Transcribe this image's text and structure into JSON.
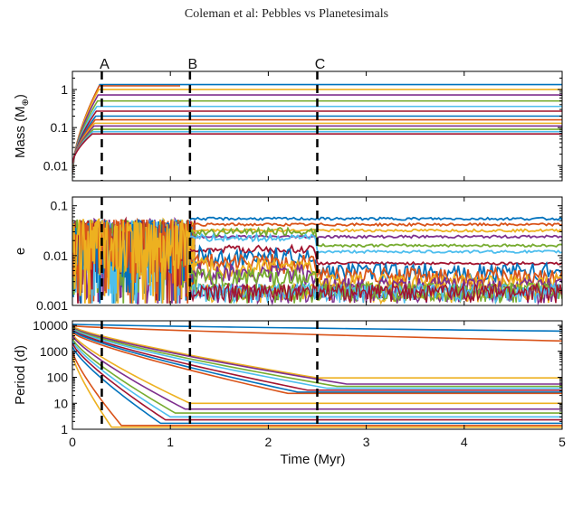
{
  "header": {
    "running_title": "Coleman et al: Pebbles vs Planetesimals"
  },
  "colors": [
    "#0072BD",
    "#D95319",
    "#EDB120",
    "#7E2F8E",
    "#77AC30",
    "#4DBEEE",
    "#A2142F"
  ],
  "chart_data": [
    {
      "panel": "mass",
      "type": "line",
      "ylabel": "Mass (M",
      "ylabel_sub": "⊕",
      "ylabel_close": ")",
      "yscale": "log",
      "ylim": [
        0.004,
        3
      ],
      "yticks": [
        "0.01",
        "0.1",
        "1"
      ],
      "xlim": [
        0,
        5
      ],
      "grid": false,
      "markers": [
        {
          "label": "A",
          "x": 0.3
        },
        {
          "label": "B",
          "x": 1.2
        },
        {
          "label": "C",
          "x": 2.5
        }
      ],
      "series_final_values": [
        1.35,
        1.25,
        1.0,
        0.72,
        0.5,
        0.36,
        0.27,
        0.2,
        0.16,
        0.13,
        0.11,
        0.09,
        0.078,
        0.068
      ],
      "growth_end_time": 0.28
    },
    {
      "panel": "eccentricity",
      "type": "line",
      "ylabel": "e",
      "yscale": "log",
      "ylim": [
        0.001,
        0.15
      ],
      "yticks": [
        "0.001",
        "0.01",
        "0.1"
      ],
      "xlim": [
        0,
        5
      ],
      "grid": false,
      "markers": [
        {
          "label": "A",
          "x": 0.3
        },
        {
          "label": "B",
          "x": 1.2
        },
        {
          "label": "C",
          "x": 2.5
        }
      ],
      "series_final_values": [
        0.055,
        0.042,
        0.032,
        0.024,
        0.016,
        0.012,
        0.007,
        0.005,
        0.004,
        0.003,
        0.0025,
        0.002
      ]
    },
    {
      "panel": "period",
      "type": "line",
      "ylabel": "Period (d)",
      "xlabel": "Time (Myr)",
      "yscale": "log",
      "ylim": [
        1,
        15000
      ],
      "yticks": [
        "1",
        "10",
        "100",
        "1000",
        "10000"
      ],
      "xticks": [
        "0",
        "1",
        "2",
        "3",
        "4",
        "5"
      ],
      "xlim": [
        0,
        5
      ],
      "grid": false,
      "markers": [
        {
          "label": "A",
          "x": 0.3
        },
        {
          "label": "B",
          "x": 1.2
        },
        {
          "label": "C",
          "x": 2.5
        }
      ],
      "series": [
        {
          "p0": 11000,
          "pf": 6000,
          "t_end": 5.0
        },
        {
          "p0": 9500,
          "pf": 2500,
          "t_end": 5.0
        },
        {
          "p0": 9000,
          "pf": 95,
          "t_end": 2.5
        },
        {
          "p0": 8000,
          "pf": 55,
          "t_end": 2.8
        },
        {
          "p0": 7500,
          "pf": 45,
          "t_end": 2.7
        },
        {
          "p0": 7000,
          "pf": 38,
          "t_end": 2.6
        },
        {
          "p0": 6500,
          "pf": 32,
          "t_end": 2.4
        },
        {
          "p0": 6000,
          "pf": 27,
          "t_end": 2.3
        },
        {
          "p0": 5200,
          "pf": 24,
          "t_end": 2.2
        },
        {
          "p0": 4500,
          "pf": 10,
          "t_end": 1.2
        },
        {
          "p0": 4000,
          "pf": 6,
          "t_end": 1.15
        },
        {
          "p0": 3000,
          "pf": 4.2,
          "t_end": 1.05
        },
        {
          "p0": 2500,
          "pf": 3.0,
          "t_end": 1.0
        },
        {
          "p0": 2000,
          "pf": 2.3,
          "t_end": 0.95
        },
        {
          "p0": 1500,
          "pf": 1.7,
          "t_end": 0.9
        },
        {
          "p0": 1000,
          "pf": 1.4,
          "t_end": 0.5
        },
        {
          "p0": 700,
          "pf": 1.2,
          "t_end": 0.4
        }
      ]
    }
  ]
}
